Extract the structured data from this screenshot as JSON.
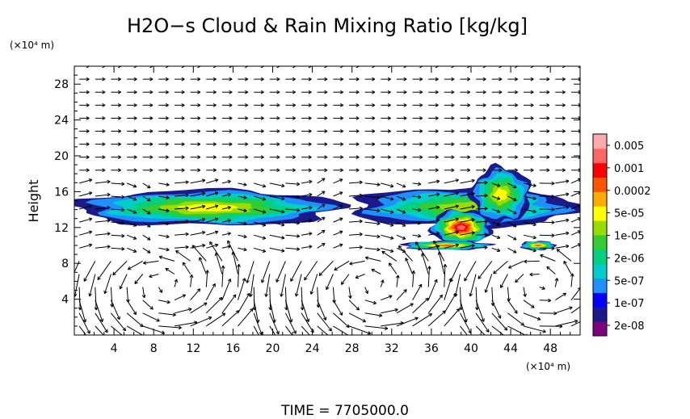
{
  "chart_data": {
    "type": "heatmap",
    "title": "H2O−s Cloud & Rain Mixing Ratio [kg/kg]",
    "ylabel": "Height",
    "x_unit": "(×10⁴ m)",
    "y_unit": "(×10⁴ m)",
    "xlim": [
      0,
      51
    ],
    "ylim": [
      0,
      30
    ],
    "x_ticks": [
      4,
      8,
      12,
      16,
      20,
      24,
      28,
      32,
      36,
      40,
      44,
      48
    ],
    "y_ticks": [
      4,
      8,
      12,
      16,
      20,
      24,
      28
    ],
    "x_tick_labels": [
      "4",
      "8",
      "12",
      "16",
      "20",
      "24",
      "28",
      "32",
      "36",
      "40",
      "44",
      "48"
    ],
    "y_tick_labels": [
      "4",
      "8",
      "12",
      "16",
      "20",
      "24",
      "28"
    ],
    "colorbar": {
      "labels": [
        "0.005",
        "0.001",
        "0.0002",
        "5e-05",
        "1e-05",
        "2e-06",
        "5e-07",
        "1e-07",
        "2e-08"
      ],
      "colors": [
        "#7f007f",
        "#1a1a8c",
        "#0000ff",
        "#1e90ff",
        "#00cccc",
        "#00d080",
        "#33cc33",
        "#99dd00",
        "#ffff00",
        "#ffaa00",
        "#ff5500",
        "#ff0000",
        "#ff6666",
        "#ffaaaa"
      ]
    },
    "cloud_regions": [
      {
        "x0": 0.0,
        "x1": 27.0,
        "y0": 12.2,
        "y1": 16.2,
        "peak": "5e-05"
      },
      {
        "x0": 28.0,
        "x1": 51.0,
        "y0": 12.0,
        "y1": 16.5,
        "peak": "1e-05"
      },
      {
        "x0": 36.0,
        "x1": 42.0,
        "y0": 10.0,
        "y1": 14.0,
        "peak": "0.001"
      },
      {
        "x0": 40.0,
        "x1": 46.0,
        "y0": 12.5,
        "y1": 18.8,
        "peak": "5e-05"
      },
      {
        "x0": 33.0,
        "x1": 42.0,
        "y0": 9.5,
        "y1": 10.5,
        "peak": "0.0002"
      },
      {
        "x0": 45.0,
        "x1": 48.5,
        "y0": 9.5,
        "y1": 10.5,
        "peak": "0.0002"
      }
    ],
    "vector_field": "wind arrows",
    "grid": false,
    "legend_position": "right"
  },
  "footer": {
    "time_label": "TIME  =  7705000.0"
  }
}
